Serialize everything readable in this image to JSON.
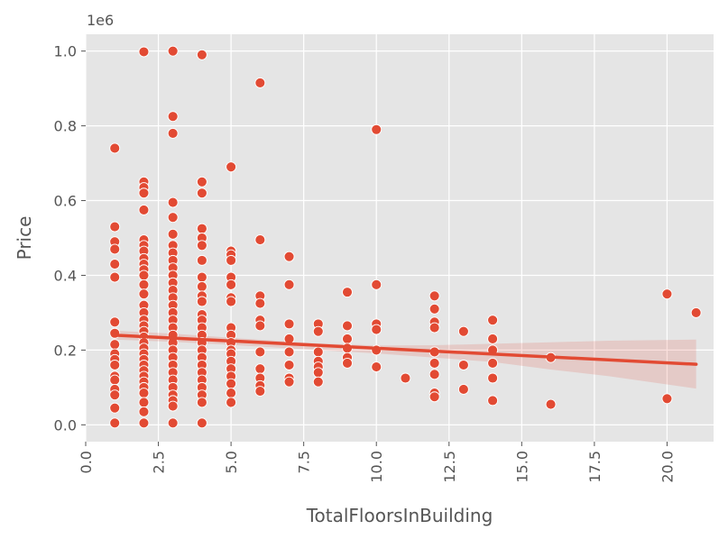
{
  "chart_data": {
    "type": "scatter",
    "xlabel": "TotalFloorsInBuilding",
    "ylabel": "Price",
    "y_offset_text": "1e6",
    "xlim": [
      0,
      21.6
    ],
    "ylim": [
      -45000,
      1045000
    ],
    "x_ticks": [
      0.0,
      2.5,
      5.0,
      7.5,
      10.0,
      12.5,
      15.0,
      17.5,
      20.0
    ],
    "x_tick_labels": [
      "0.0",
      "2.5",
      "5.0",
      "7.5",
      "10.0",
      "12.5",
      "15.0",
      "17.5",
      "20.0"
    ],
    "y_ticks": [
      0,
      200000,
      400000,
      600000,
      800000,
      1000000
    ],
    "y_tick_labels": [
      "0.0",
      "0.2",
      "0.4",
      "0.6",
      "0.8",
      "1.0"
    ],
    "grid": true,
    "background": "#e5e5e5",
    "point_color": "#e24a33",
    "line_color": "#e24a33",
    "points": [
      [
        1,
        740000
      ],
      [
        1,
        530000
      ],
      [
        1,
        490000
      ],
      [
        1,
        470000
      ],
      [
        1,
        430000
      ],
      [
        1,
        395000
      ],
      [
        1,
        275000
      ],
      [
        1,
        245000
      ],
      [
        1,
        215000
      ],
      [
        1,
        190000
      ],
      [
        1,
        175000
      ],
      [
        1,
        160000
      ],
      [
        1,
        130000
      ],
      [
        1,
        120000
      ],
      [
        1,
        95000
      ],
      [
        1,
        80000
      ],
      [
        1,
        45000
      ],
      [
        1,
        5000
      ],
      [
        2,
        998000
      ],
      [
        2,
        650000
      ],
      [
        2,
        635000
      ],
      [
        2,
        620000
      ],
      [
        2,
        575000
      ],
      [
        2,
        495000
      ],
      [
        2,
        480000
      ],
      [
        2,
        465000
      ],
      [
        2,
        445000
      ],
      [
        2,
        430000
      ],
      [
        2,
        415000
      ],
      [
        2,
        400000
      ],
      [
        2,
        375000
      ],
      [
        2,
        350000
      ],
      [
        2,
        320000
      ],
      [
        2,
        300000
      ],
      [
        2,
        280000
      ],
      [
        2,
        265000
      ],
      [
        2,
        250000
      ],
      [
        2,
        235000
      ],
      [
        2,
        220000
      ],
      [
        2,
        205000
      ],
      [
        2,
        190000
      ],
      [
        2,
        175000
      ],
      [
        2,
        160000
      ],
      [
        2,
        145000
      ],
      [
        2,
        130000
      ],
      [
        2,
        115000
      ],
      [
        2,
        100000
      ],
      [
        2,
        85000
      ],
      [
        2,
        60000
      ],
      [
        2,
        35000
      ],
      [
        2,
        5000
      ],
      [
        3,
        1000000
      ],
      [
        3,
        825000
      ],
      [
        3,
        780000
      ],
      [
        3,
        595000
      ],
      [
        3,
        555000
      ],
      [
        3,
        510000
      ],
      [
        3,
        480000
      ],
      [
        3,
        460000
      ],
      [
        3,
        440000
      ],
      [
        3,
        420000
      ],
      [
        3,
        400000
      ],
      [
        3,
        380000
      ],
      [
        3,
        360000
      ],
      [
        3,
        340000
      ],
      [
        3,
        320000
      ],
      [
        3,
        300000
      ],
      [
        3,
        280000
      ],
      [
        3,
        260000
      ],
      [
        3,
        240000
      ],
      [
        3,
        220000
      ],
      [
        3,
        200000
      ],
      [
        3,
        180000
      ],
      [
        3,
        160000
      ],
      [
        3,
        140000
      ],
      [
        3,
        120000
      ],
      [
        3,
        100000
      ],
      [
        3,
        80000
      ],
      [
        3,
        65000
      ],
      [
        3,
        50000
      ],
      [
        3,
        5000
      ],
      [
        4,
        990000
      ],
      [
        4,
        650000
      ],
      [
        4,
        620000
      ],
      [
        4,
        525000
      ],
      [
        4,
        500000
      ],
      [
        4,
        480000
      ],
      [
        4,
        440000
      ],
      [
        4,
        395000
      ],
      [
        4,
        370000
      ],
      [
        4,
        345000
      ],
      [
        4,
        330000
      ],
      [
        4,
        295000
      ],
      [
        4,
        280000
      ],
      [
        4,
        260000
      ],
      [
        4,
        240000
      ],
      [
        4,
        220000
      ],
      [
        4,
        200000
      ],
      [
        4,
        180000
      ],
      [
        4,
        160000
      ],
      [
        4,
        140000
      ],
      [
        4,
        120000
      ],
      [
        4,
        100000
      ],
      [
        4,
        80000
      ],
      [
        4,
        60000
      ],
      [
        4,
        5000
      ],
      [
        5,
        690000
      ],
      [
        5,
        465000
      ],
      [
        5,
        455000
      ],
      [
        5,
        440000
      ],
      [
        5,
        395000
      ],
      [
        5,
        375000
      ],
      [
        5,
        340000
      ],
      [
        5,
        330000
      ],
      [
        5,
        260000
      ],
      [
        5,
        240000
      ],
      [
        5,
        220000
      ],
      [
        5,
        200000
      ],
      [
        5,
        190000
      ],
      [
        5,
        170000
      ],
      [
        5,
        150000
      ],
      [
        5,
        130000
      ],
      [
        5,
        110000
      ],
      [
        5,
        85000
      ],
      [
        5,
        60000
      ],
      [
        6,
        915000
      ],
      [
        6,
        495000
      ],
      [
        6,
        345000
      ],
      [
        6,
        325000
      ],
      [
        6,
        280000
      ],
      [
        6,
        265000
      ],
      [
        6,
        195000
      ],
      [
        6,
        150000
      ],
      [
        6,
        125000
      ],
      [
        6,
        105000
      ],
      [
        6,
        90000
      ],
      [
        7,
        450000
      ],
      [
        7,
        375000
      ],
      [
        7,
        270000
      ],
      [
        7,
        230000
      ],
      [
        7,
        195000
      ],
      [
        7,
        160000
      ],
      [
        7,
        125000
      ],
      [
        7,
        115000
      ],
      [
        8,
        270000
      ],
      [
        8,
        250000
      ],
      [
        8,
        195000
      ],
      [
        8,
        170000
      ],
      [
        8,
        155000
      ],
      [
        8,
        140000
      ],
      [
        8,
        115000
      ],
      [
        9,
        355000
      ],
      [
        9,
        265000
      ],
      [
        9,
        230000
      ],
      [
        9,
        205000
      ],
      [
        9,
        180000
      ],
      [
        9,
        165000
      ],
      [
        10,
        790000
      ],
      [
        10,
        375000
      ],
      [
        10,
        270000
      ],
      [
        10,
        255000
      ],
      [
        10,
        200000
      ],
      [
        10,
        155000
      ],
      [
        11,
        125000
      ],
      [
        12,
        345000
      ],
      [
        12,
        310000
      ],
      [
        12,
        275000
      ],
      [
        12,
        260000
      ],
      [
        12,
        195000
      ],
      [
        12,
        165000
      ],
      [
        12,
        135000
      ],
      [
        12,
        85000
      ],
      [
        12,
        75000
      ],
      [
        13,
        250000
      ],
      [
        13,
        160000
      ],
      [
        13,
        95000
      ],
      [
        14,
        280000
      ],
      [
        14,
        230000
      ],
      [
        14,
        200000
      ],
      [
        14,
        165000
      ],
      [
        14,
        125000
      ],
      [
        14,
        65000
      ],
      [
        16,
        180000
      ],
      [
        16,
        55000
      ],
      [
        20,
        350000
      ],
      [
        20,
        70000
      ],
      [
        21,
        300000
      ]
    ],
    "regression": {
      "x": [
        1,
        21
      ],
      "y": [
        240000,
        162000
      ]
    },
    "confidence_band": {
      "x": [
        1,
        3,
        5,
        8,
        10,
        12,
        14,
        16,
        18,
        21
      ],
      "upper": [
        252000,
        244000,
        233000,
        218000,
        212000,
        213000,
        217000,
        221000,
        225000,
        228000
      ],
      "lower": [
        228000,
        222000,
        214000,
        200000,
        191000,
        180000,
        168000,
        148000,
        130000,
        97000
      ]
    }
  }
}
